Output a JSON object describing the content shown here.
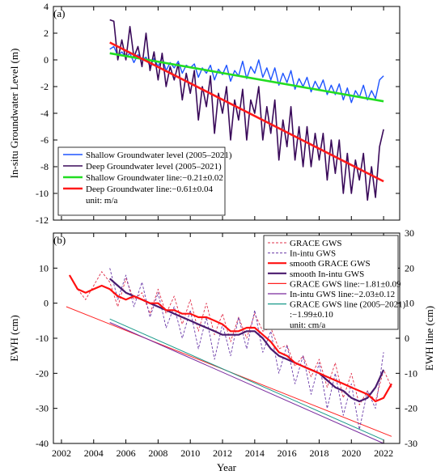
{
  "figure": {
    "panel_labels": [
      "(a)",
      "(b)"
    ],
    "shared_xlabel": "Year"
  },
  "chart_data": [
    {
      "type": "line",
      "panel": "(a)",
      "ylabel": "In-situ Groundwater Level (m)",
      "xlim": [
        2001.5,
        2023
      ],
      "ylim": [
        -12,
        4
      ],
      "yticks": [
        -12,
        -10,
        -8,
        -6,
        -4,
        -2,
        0,
        2,
        4
      ],
      "legend_position": "bottom-left",
      "legend_note": "unit: m/a",
      "series": [
        {
          "name": "Shallow Groundwater level (2005–2021)",
          "color": "#1f55ff",
          "style": "solid",
          "x": [
            2005.0,
            2005.25,
            2005.5,
            2005.75,
            2006.0,
            2006.25,
            2006.5,
            2006.75,
            2007.0,
            2007.25,
            2007.5,
            2007.75,
            2008.0,
            2008.25,
            2008.5,
            2008.75,
            2009.0,
            2009.25,
            2009.5,
            2009.75,
            2010.0,
            2010.25,
            2010.5,
            2010.75,
            2011.0,
            2011.25,
            2011.5,
            2011.75,
            2012.0,
            2012.25,
            2012.5,
            2012.75,
            2013.0,
            2013.25,
            2013.5,
            2013.75,
            2014.0,
            2014.25,
            2014.5,
            2014.75,
            2015.0,
            2015.25,
            2015.5,
            2015.75,
            2016.0,
            2016.25,
            2016.5,
            2016.75,
            2017.0,
            2017.25,
            2017.5,
            2017.75,
            2018.0,
            2018.25,
            2018.5,
            2018.75,
            2019.0,
            2019.25,
            2019.5,
            2019.75,
            2020.0,
            2020.25,
            2020.5,
            2020.75,
            2021.0,
            2021.25,
            2021.5,
            2021.75,
            2022.0
          ],
          "y": [
            0.8,
            1.0,
            0.3,
            0.6,
            0.2,
            0.5,
            -0.2,
            0.4,
            0.0,
            0.2,
            -0.5,
            0.1,
            -0.5,
            0.2,
            -0.8,
            -0.2,
            -0.6,
            -0.1,
            -1.0,
            -0.4,
            -0.6,
            -0.3,
            -1.3,
            -0.6,
            -1.0,
            -0.4,
            -1.5,
            -0.7,
            -1.1,
            -0.4,
            -1.6,
            -0.8,
            -1.2,
            -0.1,
            -1.4,
            -0.5,
            -1.0,
            0.0,
            -1.3,
            -0.6,
            -1.5,
            -0.6,
            -1.9,
            -1.0,
            -1.7,
            -0.8,
            -2.2,
            -1.4,
            -2.0,
            -1.3,
            -2.4,
            -1.6,
            -2.2,
            -1.5,
            -2.6,
            -1.9,
            -2.6,
            -1.8,
            -3.0,
            -2.1,
            -3.2,
            -2.3,
            -2.8,
            -1.9,
            -3.0,
            -2.3,
            -2.9,
            -1.5,
            -1.2
          ]
        },
        {
          "name": "Deep Groundwater level (2005–2021)",
          "color": "#3a0a5a",
          "style": "solid",
          "x": [
            2005.0,
            2005.25,
            2005.5,
            2005.75,
            2006.0,
            2006.25,
            2006.5,
            2006.75,
            2007.0,
            2007.25,
            2007.5,
            2007.75,
            2008.0,
            2008.25,
            2008.5,
            2008.75,
            2009.0,
            2009.25,
            2009.5,
            2009.75,
            2010.0,
            2010.25,
            2010.5,
            2010.75,
            2011.0,
            2011.25,
            2011.5,
            2011.75,
            2012.0,
            2012.25,
            2012.5,
            2012.75,
            2013.0,
            2013.25,
            2013.5,
            2013.75,
            2014.0,
            2014.25,
            2014.5,
            2014.75,
            2015.0,
            2015.25,
            2015.5,
            2015.75,
            2016.0,
            2016.25,
            2016.5,
            2016.75,
            2017.0,
            2017.25,
            2017.5,
            2017.75,
            2018.0,
            2018.25,
            2018.5,
            2018.75,
            2019.0,
            2019.25,
            2019.5,
            2019.75,
            2020.0,
            2020.25,
            2020.5,
            2020.75,
            2021.0,
            2021.25,
            2021.5,
            2021.75,
            2022.0
          ],
          "y": [
            3.0,
            2.9,
            0.0,
            1.5,
            0.0,
            2.5,
            0.2,
            1.0,
            -0.5,
            2.0,
            -0.8,
            0.6,
            -1.5,
            0.5,
            -2.0,
            -0.5,
            -1.5,
            -0.3,
            -3.0,
            -1.0,
            -2.5,
            -0.8,
            -4.5,
            -2.0,
            -3.5,
            -1.2,
            -5.5,
            -2.5,
            -4.0,
            -2.0,
            -6.0,
            -3.0,
            -4.5,
            -2.2,
            -6.0,
            -3.0,
            -4.0,
            -2.0,
            -6.0,
            -3.5,
            -5.5,
            -3.0,
            -7.5,
            -4.5,
            -6.5,
            -3.5,
            -7.5,
            -5.0,
            -8.0,
            -5.0,
            -8.0,
            -5.5,
            -7.5,
            -5.5,
            -9.0,
            -6.0,
            -8.5,
            -6.0,
            -10.0,
            -7.0,
            -10.0,
            -7.5,
            -9.0,
            -7.0,
            -10.5,
            -8.0,
            -10.3,
            -6.5,
            -5.2
          ]
        },
        {
          "name": "Shallow Groundwater line:−0.21±0.02",
          "color": "#22dd22",
          "style": "solid",
          "x": [
            2005.0,
            2022.0
          ],
          "y": [
            0.5,
            -3.1
          ]
        },
        {
          "name": "Deep Groundwater line:−0.61±0.04",
          "color": "#ff1a1a",
          "style": "solid",
          "x": [
            2005.0,
            2022.0
          ],
          "y": [
            1.3,
            -9.1
          ]
        }
      ]
    },
    {
      "type": "line",
      "panel": "(b)",
      "xlabel": "Year",
      "ylabel": "EWH (cm)",
      "y2label": "EWH line (cm)",
      "xlim": [
        2001.5,
        2023
      ],
      "xticks": [
        2002,
        2004,
        2006,
        2008,
        2010,
        2012,
        2014,
        2016,
        2018,
        2020,
        2022
      ],
      "ylim": [
        -40,
        20
      ],
      "yticks": [
        -40,
        -30,
        -20,
        -10,
        0,
        10
      ],
      "y2lim": [
        -30,
        30
      ],
      "y2ticks": [
        -30,
        -20,
        -10,
        0,
        10,
        20,
        30
      ],
      "legend_position": "top-right",
      "legend_note": "unit: cm/a",
      "series": [
        {
          "name": "GRACE GWS",
          "color": "#e0304a",
          "style": "dashed",
          "axis": "left",
          "x": [
            2002.5,
            2003.0,
            2003.5,
            2004.0,
            2004.5,
            2005.0,
            2005.5,
            2006.0,
            2006.5,
            2007.0,
            2007.5,
            2008.0,
            2008.5,
            2009.0,
            2009.5,
            2010.0,
            2010.5,
            2011.0,
            2011.5,
            2012.0,
            2012.5,
            2013.0,
            2013.5,
            2014.0,
            2014.5,
            2015.0,
            2015.5,
            2016.0,
            2016.5,
            2017.0,
            2017.5,
            2018.0,
            2018.5,
            2019.0,
            2019.5,
            2020.0,
            2020.5,
            2021.0,
            2021.5,
            2022.0,
            2022.5
          ],
          "y": [
            8,
            4,
            1,
            5,
            9,
            6,
            -1,
            7,
            1,
            3,
            -3,
            4,
            -3,
            2,
            -6,
            1,
            -8,
            0,
            -9,
            -3,
            -11,
            -4,
            -10,
            -3,
            -8,
            -7,
            -13,
            -12,
            -18,
            -15,
            -21,
            -16,
            -24,
            -17,
            -27,
            -20,
            -29,
            -25,
            -28,
            -19,
            -24
          ]
        },
        {
          "name": "In-intu GWS",
          "color": "#6a3aa8",
          "style": "dashed",
          "axis": "left",
          "x": [
            2005.0,
            2005.5,
            2006.0,
            2006.5,
            2007.0,
            2007.5,
            2008.0,
            2008.5,
            2009.0,
            2009.5,
            2010.0,
            2010.5,
            2011.0,
            2011.5,
            2012.0,
            2012.5,
            2013.0,
            2013.5,
            2014.0,
            2014.5,
            2015.0,
            2015.5,
            2016.0,
            2016.5,
            2017.0,
            2017.5,
            2018.0,
            2018.5,
            2019.0,
            2019.5,
            2020.0,
            2020.5,
            2021.0,
            2021.5,
            2022.0
          ],
          "y": [
            10,
            1,
            8,
            -1,
            6,
            -4,
            3,
            -7,
            -1,
            -10,
            -2,
            -13,
            -4,
            -16,
            -6,
            -15,
            -4,
            -13,
            -2,
            -14,
            -8,
            -20,
            -12,
            -23,
            -15,
            -26,
            -17,
            -30,
            -20,
            -32,
            -23,
            -36,
            -25,
            -30,
            -14
          ]
        },
        {
          "name": "smooth GRACE GWS",
          "color": "#ff1010",
          "style": "solid",
          "axis": "left",
          "x": [
            2002.5,
            2003.0,
            2003.5,
            2004.0,
            2004.5,
            2005.0,
            2005.5,
            2006.0,
            2006.5,
            2007.0,
            2007.5,
            2008.0,
            2008.5,
            2009.0,
            2009.5,
            2010.0,
            2010.5,
            2011.0,
            2011.5,
            2012.0,
            2012.5,
            2013.0,
            2013.5,
            2014.0,
            2014.5,
            2015.0,
            2015.5,
            2016.0,
            2016.5,
            2017.0,
            2017.5,
            2018.0,
            2018.5,
            2019.0,
            2019.5,
            2020.0,
            2020.5,
            2021.0,
            2021.5,
            2022.0,
            2022.5
          ],
          "y": [
            8,
            4,
            3,
            4,
            5,
            4,
            2,
            1,
            2,
            1,
            0,
            0,
            -2,
            -2,
            -3,
            -3,
            -4,
            -4,
            -5,
            -6,
            -8,
            -8,
            -7,
            -7,
            -9,
            -11,
            -14,
            -15,
            -17,
            -18,
            -19,
            -20,
            -21,
            -22,
            -23,
            -24,
            -25,
            -26,
            -28,
            -27,
            -23
          ]
        },
        {
          "name": "smooth In-intu GWS",
          "color": "#4a1a6e",
          "style": "solid",
          "axis": "left",
          "x": [
            2005.0,
            2005.5,
            2006.0,
            2006.5,
            2007.0,
            2007.5,
            2008.0,
            2008.5,
            2009.0,
            2009.5,
            2010.0,
            2010.5,
            2011.0,
            2011.5,
            2012.0,
            2012.5,
            2013.0,
            2013.5,
            2014.0,
            2014.5,
            2015.0,
            2015.5,
            2016.0,
            2016.5,
            2017.0,
            2017.5,
            2018.0,
            2018.5,
            2019.0,
            2019.5,
            2020.0,
            2020.5,
            2021.0,
            2021.5,
            2022.0
          ],
          "y": [
            7,
            5,
            3,
            2,
            1,
            0,
            -1,
            -2,
            -3,
            -4,
            -5,
            -6,
            -7,
            -8,
            -9,
            -9,
            -9,
            -8,
            -8,
            -10,
            -13,
            -15,
            -16,
            -17,
            -18,
            -19,
            -20,
            -22,
            -24,
            -25,
            -27,
            -28,
            -27,
            -24,
            -19
          ]
        },
        {
          "name": "GRACE GWS line:−1.81±0.09",
          "color": "#ff2020",
          "style": "solid",
          "axis": "right",
          "x": [
            2002.3,
            2022.5
          ],
          "y": [
            9,
            -28
          ]
        },
        {
          "name": "In-intu GWS line:−2.03±0.12",
          "color": "#7a2a9e",
          "style": "solid",
          "axis": "right",
          "x": [
            2005.0,
            2022.0
          ],
          "y": [
            4.5,
            -30
          ]
        },
        {
          "name": "GRACE GWS line (2005–2021)",
          "name_line2": ":−1.99±0.10",
          "color": "#1a9a8a",
          "style": "solid",
          "axis": "right",
          "x": [
            2005.0,
            2022.0
          ],
          "y": [
            5.5,
            -29
          ]
        }
      ]
    }
  ]
}
